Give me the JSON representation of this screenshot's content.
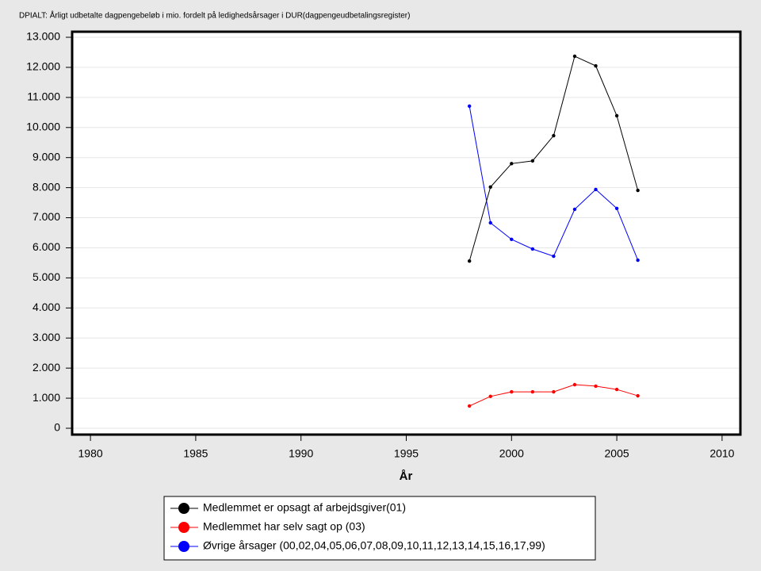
{
  "chart_data": {
    "type": "line",
    "title": "DPIALT: Årligt udbetalte dagpengebeløb i mio. fordelt på ledighedsårsager i DUR(dagpengeudbetalingsregister)",
    "x_label": "År",
    "x": [
      1998,
      1999,
      2000,
      2001,
      2002,
      2003,
      2004,
      2005,
      2006
    ],
    "series": [
      {
        "name": "Medlemmet er opsagt af arbejdsgiver(01)",
        "color": "#000000",
        "values": [
          5560,
          8020,
          8800,
          8890,
          9730,
          12370,
          12050,
          10390,
          7910
        ]
      },
      {
        "name": "Medlemmet har selv sagt op (03)",
        "color": "#ff0000",
        "values": [
          740,
          1060,
          1210,
          1210,
          1210,
          1450,
          1400,
          1290,
          1080
        ]
      },
      {
        "name": "Øvrige årsager (00,02,04,05,06,07,08,09,10,11,12,13,14,15,16,17,99)",
        "color": "#0000ff",
        "values": [
          10710,
          6830,
          6280,
          5960,
          5720,
          7280,
          7940,
          7310,
          5590
        ]
      }
    ],
    "xlim": [
      1979.13,
      2010.87
    ],
    "xticks": [
      1980,
      1985,
      1990,
      1995,
      2000,
      2005,
      2010
    ],
    "ylim": [
      -211,
      13185
    ],
    "yticks": [
      0,
      {
        "value": 1000,
        "label": "1.000"
      },
      {
        "value": 2000,
        "label": "2.000"
      },
      {
        "value": 3000,
        "label": "3.000"
      },
      {
        "value": 4000,
        "label": "4.000"
      },
      {
        "value": 5000,
        "label": "5.000"
      },
      {
        "value": 6000,
        "label": "6.000"
      },
      {
        "value": 7000,
        "label": "7.000"
      },
      {
        "value": 8000,
        "label": "8.000"
      },
      {
        "value": 9000,
        "label": "9.000"
      },
      {
        "value": 10000,
        "label": "10.000"
      },
      {
        "value": 11000,
        "label": "11.000"
      },
      {
        "value": 12000,
        "label": "12.000"
      },
      {
        "value": 13000,
        "label": "13.000"
      }
    ],
    "grid": true
  }
}
